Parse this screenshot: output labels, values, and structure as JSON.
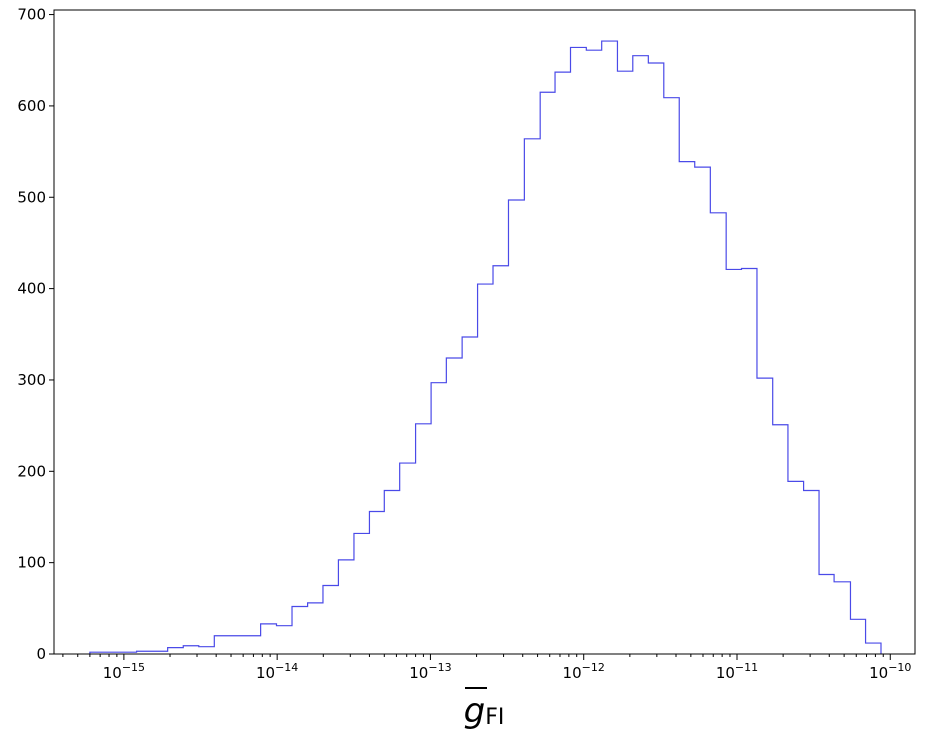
{
  "chart_data": {
    "type": "histogram",
    "title": "",
    "xlabel": "g_FI",
    "xlabel_base": "g",
    "xlabel_sub": "FI",
    "ylabel": "",
    "xscale": "log",
    "xlim": [
      3.5e-16,
      1.45e-10
    ],
    "ylim": [
      0,
      705
    ],
    "grid": false,
    "series_color": "#4a4ae8",
    "y_ticks": [
      {
        "value": 0,
        "label": "0"
      },
      {
        "value": 100,
        "label": "100"
      },
      {
        "value": 200,
        "label": "200"
      },
      {
        "value": 300,
        "label": "300"
      },
      {
        "value": 400,
        "label": "400"
      },
      {
        "value": 500,
        "label": "500"
      },
      {
        "value": 600,
        "label": "600"
      },
      {
        "value": 700,
        "label": "700"
      }
    ],
    "x_ticks": [
      {
        "value": 1e-15,
        "base": "10",
        "exp": "−15"
      },
      {
        "value": 1e-14,
        "base": "10",
        "exp": "−14"
      },
      {
        "value": 1e-13,
        "base": "10",
        "exp": "−13"
      },
      {
        "value": 1e-12,
        "base": "10",
        "exp": "−12"
      },
      {
        "value": 1e-11,
        "base": "10",
        "exp": "−11"
      },
      {
        "value": 1e-10,
        "base": "10",
        "exp": "−10"
      }
    ],
    "bin_edges": [
      6e-16,
      7.6e-16,
      9.6e-16,
      1.21e-15,
      1.53e-15,
      1.93e-15,
      2.44e-15,
      3.08e-15,
      3.89e-15,
      4.9e-15,
      6.2e-15,
      7.8e-15,
      9.9e-15,
      1.25e-14,
      1.58e-14,
      1.99e-14,
      2.51e-14,
      3.17e-14,
      4e-14,
      5e-14,
      6.3e-14,
      8e-14,
      1.01e-13,
      1.27e-13,
      1.61e-13,
      2.03e-13,
      2.56e-13,
      3.23e-13,
      4.1e-13,
      5.2e-13,
      6.5e-13,
      8.2e-13,
      1.04e-12,
      1.31e-12,
      1.66e-12,
      2.09e-12,
      2.64e-12,
      3.33e-12,
      4.2e-12,
      5.3e-12,
      6.7e-12,
      8.5e-12,
      1.07e-11,
      1.35e-11,
      1.71e-11,
      2.15e-11,
      2.72e-11,
      3.43e-11,
      4.3e-11,
      5.5e-11,
      6.9e-11,
      8.7e-11
    ],
    "counts": [
      2,
      2,
      2,
      3,
      3,
      7,
      9,
      8,
      20,
      20,
      20,
      33,
      31,
      52,
      56,
      75,
      103,
      132,
      156,
      179,
      209,
      252,
      297,
      324,
      347,
      405,
      425,
      497,
      564,
      615,
      637,
      664,
      661,
      671,
      638,
      655,
      647,
      609,
      539,
      533,
      483,
      421,
      422,
      302,
      251,
      189,
      179,
      87,
      79,
      38,
      12
    ]
  }
}
